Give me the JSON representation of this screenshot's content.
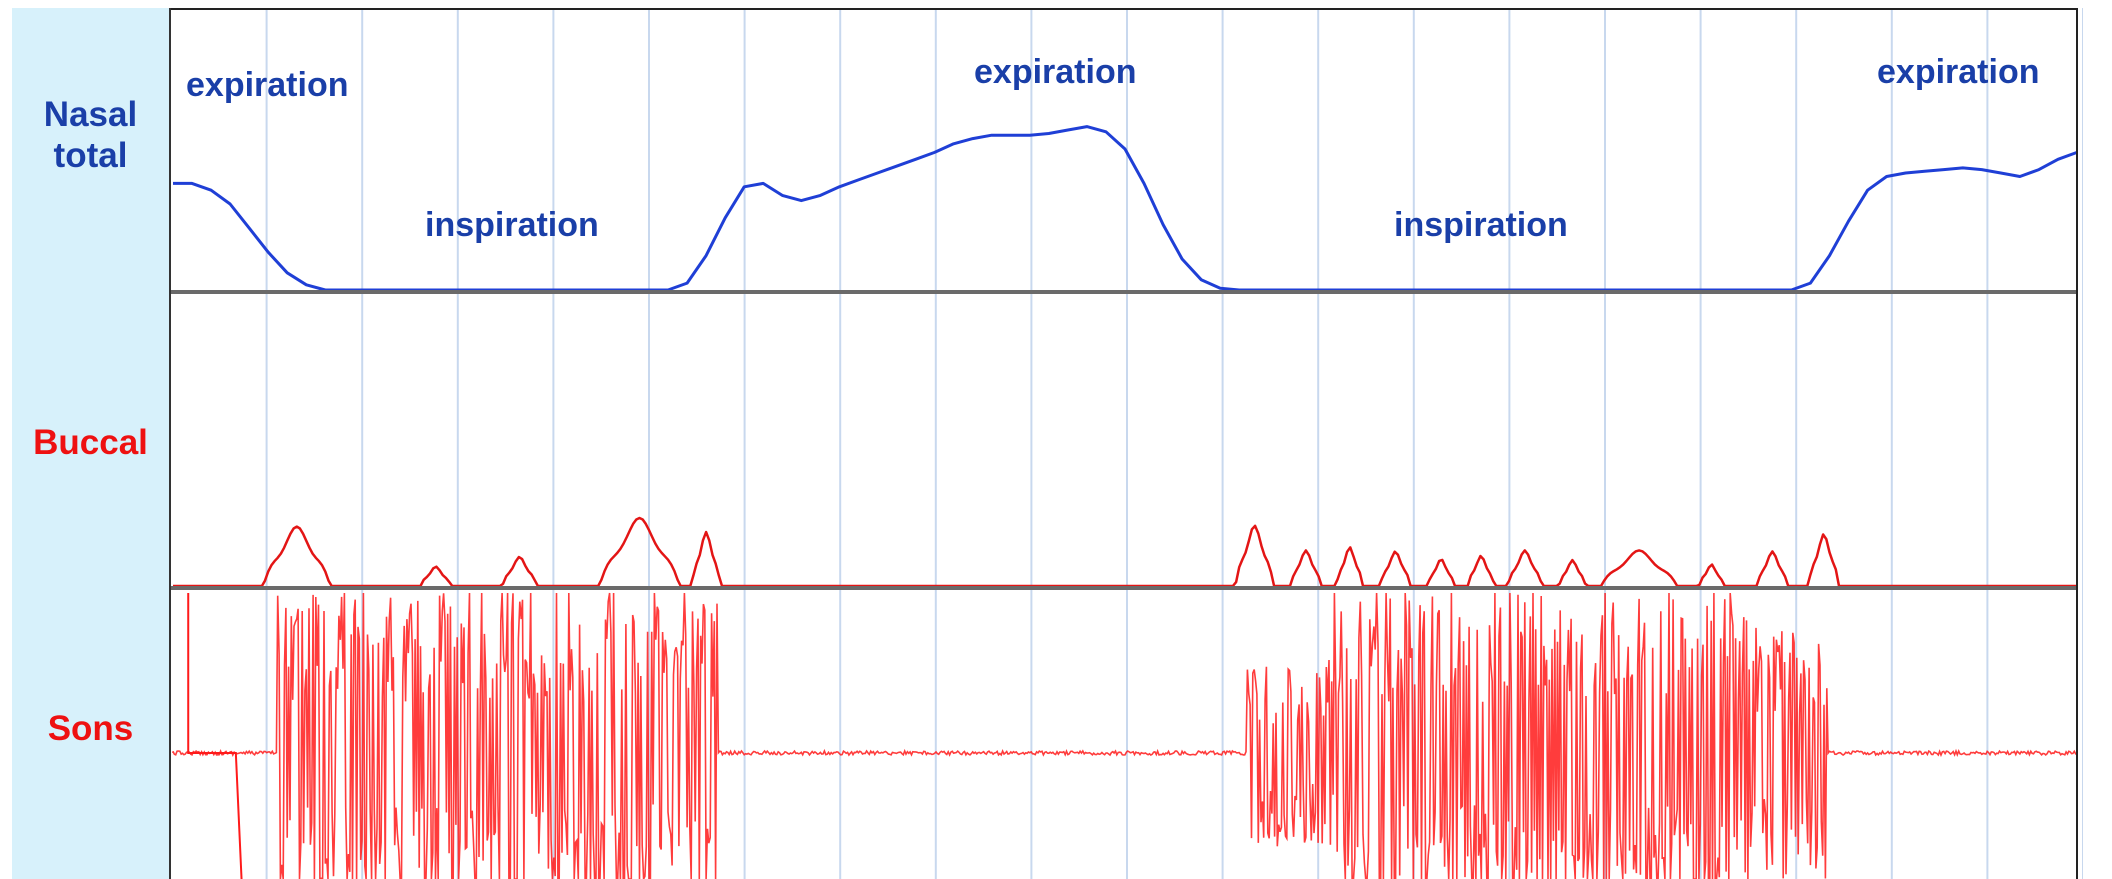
{
  "chart_data": {
    "type": "line",
    "panels": [
      {
        "label": "Nasal\ntotal",
        "color": "#1f3fd6",
        "label_color": "#1a3fa8"
      },
      {
        "label": "Buccal",
        "color": "#e31515",
        "label_color": "#ee1111"
      },
      {
        "label": "Sons",
        "color": "#ff1a1a",
        "label_color": "#ee1111"
      }
    ],
    "annotations": [
      {
        "text": "expiration",
        "panel": 0
      },
      {
        "text": "inspiration",
        "panel": 0
      },
      {
        "text": "expiration",
        "panel": 0
      },
      {
        "text": "inspiration",
        "panel": 0
      },
      {
        "text": "expiration",
        "panel": 0
      }
    ],
    "annotation_color": "#1a3fa8",
    "grid": true,
    "grid_color": "#c8d8ee",
    "baseline_color": "#6a6a6a",
    "nasal": {
      "x": [
        0,
        1,
        2,
        3,
        4,
        5,
        6,
        7,
        8,
        9,
        10,
        11,
        12,
        13,
        14,
        15,
        16,
        17,
        18,
        19,
        20,
        21,
        22,
        23,
        24,
        25,
        26,
        27,
        28,
        29,
        30,
        31,
        32,
        33,
        34,
        35,
        36,
        37,
        38,
        39,
        40,
        41,
        42,
        43,
        44,
        45,
        46,
        47,
        48,
        49,
        50,
        51,
        52,
        53,
        54,
        55,
        56,
        57,
        58,
        59,
        60,
        61,
        62,
        63,
        64,
        65,
        66,
        67,
        68,
        69,
        70,
        71,
        72,
        73,
        74,
        75,
        76,
        77,
        78,
        79,
        80,
        81,
        82,
        83,
        84,
        85,
        86,
        87,
        88,
        89,
        90,
        91,
        92,
        93,
        94,
        95,
        96,
        97,
        98,
        99,
        100
      ],
      "y": [
        0.62,
        0.62,
        0.58,
        0.5,
        0.36,
        0.22,
        0.1,
        0.03,
        0,
        0,
        0,
        0,
        0,
        0,
        0,
        0,
        0,
        0,
        0,
        0,
        0,
        0,
        0,
        0,
        0,
        0,
        0,
        0.04,
        0.2,
        0.42,
        0.6,
        0.62,
        0.55,
        0.52,
        0.55,
        0.6,
        0.64,
        0.68,
        0.72,
        0.76,
        0.8,
        0.85,
        0.88,
        0.9,
        0.9,
        0.9,
        0.91,
        0.93,
        0.95,
        0.92,
        0.82,
        0.62,
        0.38,
        0.18,
        0.06,
        0.01,
        0,
        0,
        0,
        0,
        0,
        0,
        0,
        0,
        0,
        0,
        0,
        0,
        0,
        0,
        0,
        0,
        0,
        0,
        0,
        0,
        0,
        0,
        0,
        0,
        0,
        0,
        0,
        0,
        0,
        0,
        0.04,
        0.2,
        0.4,
        0.58,
        0.66,
        0.68,
        0.69,
        0.7,
        0.71,
        0.7,
        0.68,
        0.66,
        0.7,
        0.76,
        0.8
      ]
    },
    "buccal_peaks": [
      {
        "center": 6.5,
        "width": 3.5,
        "height": 0.55
      },
      {
        "center": 13.8,
        "width": 1.6,
        "height": 0.18
      },
      {
        "center": 18.2,
        "width": 1.8,
        "height": 0.27
      },
      {
        "center": 24.5,
        "width": 4.2,
        "height": 0.63
      },
      {
        "center": 28.0,
        "width": 1.5,
        "height": 0.5
      },
      {
        "center": 56.8,
        "width": 2.0,
        "height": 0.56
      },
      {
        "center": 59.5,
        "width": 1.6,
        "height": 0.33
      },
      {
        "center": 61.8,
        "width": 1.4,
        "height": 0.36
      },
      {
        "center": 64.2,
        "width": 1.6,
        "height": 0.32
      },
      {
        "center": 66.6,
        "width": 1.4,
        "height": 0.25
      },
      {
        "center": 68.7,
        "width": 1.4,
        "height": 0.28
      },
      {
        "center": 71.0,
        "width": 1.8,
        "height": 0.33
      },
      {
        "center": 73.5,
        "width": 1.4,
        "height": 0.24
      },
      {
        "center": 77.0,
        "width": 4.0,
        "height": 0.33
      },
      {
        "center": 80.8,
        "width": 1.3,
        "height": 0.2
      },
      {
        "center": 84.0,
        "width": 1.6,
        "height": 0.32
      },
      {
        "center": 86.7,
        "width": 1.6,
        "height": 0.48
      }
    ],
    "sons_bursts": [
      {
        "start": 5.5,
        "end": 28.6,
        "amplitude": 1.0
      },
      {
        "start": 56.4,
        "end": 61.0,
        "amplitude": 0.55
      },
      {
        "start": 61.0,
        "end": 83.0,
        "amplitude": 1.0
      },
      {
        "start": 83.0,
        "end": 86.9,
        "amplitude": 0.75
      }
    ],
    "sons_baseline": 0.6
  }
}
